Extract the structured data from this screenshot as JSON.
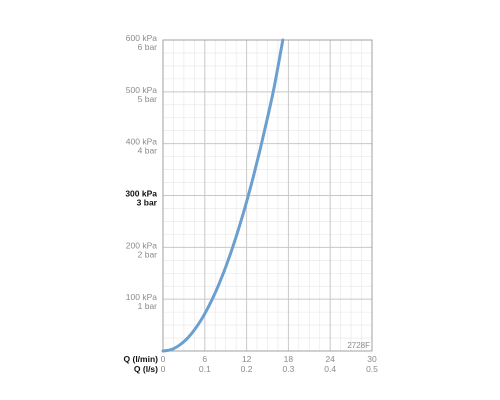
{
  "chart_data": {
    "type": "line",
    "colors": {
      "curve": "#6b9fd0",
      "grid_minor": "#e6e6e6",
      "grid_major": "#c8c8c8",
      "frame": "#a0a0a0"
    },
    "x_axes": [
      {
        "label": "Q (l/min)",
        "ticks": [
          "0",
          "6",
          "12",
          "18",
          "24",
          "30"
        ],
        "range": [
          0,
          30
        ]
      },
      {
        "label": "Q (l/s)",
        "ticks": [
          "0",
          "0.1",
          "0.2",
          "0.3",
          "0.4",
          "0.5"
        ],
        "range": [
          0,
          0.5
        ]
      }
    ],
    "y_range": [
      0,
      600
    ],
    "y_ticks": [
      {
        "value": 100,
        "kpa": "100 kPa",
        "bar": "1 bar",
        "emphasis": false
      },
      {
        "value": 200,
        "kpa": "200 kPa",
        "bar": "2 bar",
        "emphasis": false
      },
      {
        "value": 300,
        "kpa": "300 kPa",
        "bar": "3 bar",
        "emphasis": true
      },
      {
        "value": 400,
        "kpa": "400 kPa",
        "bar": "4 bar",
        "emphasis": false
      },
      {
        "value": 500,
        "kpa": "500 kPa",
        "bar": "5 bar",
        "emphasis": false
      },
      {
        "value": 600,
        "kpa": "600 kPa",
        "bar": "6 bar",
        "emphasis": false
      }
    ],
    "grid": true,
    "code": "2728F",
    "series": [
      {
        "x": [
          0,
          1,
          2,
          3,
          4,
          5,
          6,
          7,
          8,
          9,
          10,
          11,
          12,
          13,
          14,
          15,
          16,
          17.2
        ],
        "y": [
          0,
          2,
          8,
          18,
          32,
          50,
          72,
          98,
          128,
          162,
          200,
          242,
          288,
          338,
          392,
          450,
          512,
          600
        ]
      }
    ]
  }
}
